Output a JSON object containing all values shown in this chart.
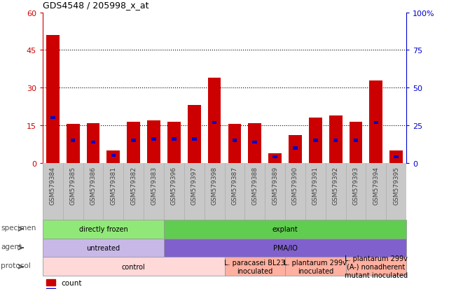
{
  "title": "GDS4548 / 205998_x_at",
  "samples": [
    "GSM579384",
    "GSM579385",
    "GSM579386",
    "GSM579381",
    "GSM579382",
    "GSM579383",
    "GSM579396",
    "GSM579397",
    "GSM579398",
    "GSM579387",
    "GSM579388",
    "GSM579389",
    "GSM579390",
    "GSM579391",
    "GSM579392",
    "GSM579393",
    "GSM579394",
    "GSM579395"
  ],
  "count_values": [
    51,
    15.5,
    16,
    5,
    16.5,
    17,
    16.5,
    23,
    34,
    15.5,
    16,
    4,
    11,
    18,
    19,
    16.5,
    33,
    5
  ],
  "percentile_values": [
    30,
    15,
    14,
    5,
    15,
    16,
    16,
    16,
    27,
    15,
    14,
    4,
    10,
    15,
    15,
    15,
    27,
    4
  ],
  "red_color": "#cc0000",
  "blue_color": "#0000cc",
  "xticklabel_bg": "#c8c8c8",
  "left_ylim": [
    0,
    60
  ],
  "right_ylim": [
    0,
    100
  ],
  "left_yticks": [
    0,
    15,
    30,
    45,
    60
  ],
  "right_yticks": [
    0,
    25,
    50,
    75,
    100
  ],
  "right_yticklabels": [
    "0",
    "25",
    "50",
    "75",
    "100%"
  ],
  "specimen_labels": [
    {
      "label": "directly frozen",
      "start": 0,
      "end": 6,
      "color": "#90e878"
    },
    {
      "label": "explant",
      "start": 6,
      "end": 18,
      "color": "#60cc50"
    }
  ],
  "agent_labels": [
    {
      "label": "untreated",
      "start": 0,
      "end": 6,
      "color": "#c8b8e8"
    },
    {
      "label": "PMA/IO",
      "start": 6,
      "end": 18,
      "color": "#8060cc"
    }
  ],
  "protocol_labels": [
    {
      "label": "control",
      "start": 0,
      "end": 9,
      "color": "#ffd8d8"
    },
    {
      "label": "L. paracasei BL23\ninoculated",
      "start": 9,
      "end": 12,
      "color": "#ffb0a0"
    },
    {
      "label": "L. plantarum 299v\ninoculated",
      "start": 12,
      "end": 15,
      "color": "#ffb0a0"
    },
    {
      "label": "L. plantarum 299v\n(A-) nonadherent\nmutant inoculated",
      "start": 15,
      "end": 18,
      "color": "#ffb0a0"
    }
  ],
  "row_labels": [
    "specimen",
    "agent",
    "protocol"
  ],
  "row_label_color": "#505050",
  "tick_label_color": "#404040",
  "left_tick_color": "#cc0000",
  "right_tick_color": "#0000cc"
}
